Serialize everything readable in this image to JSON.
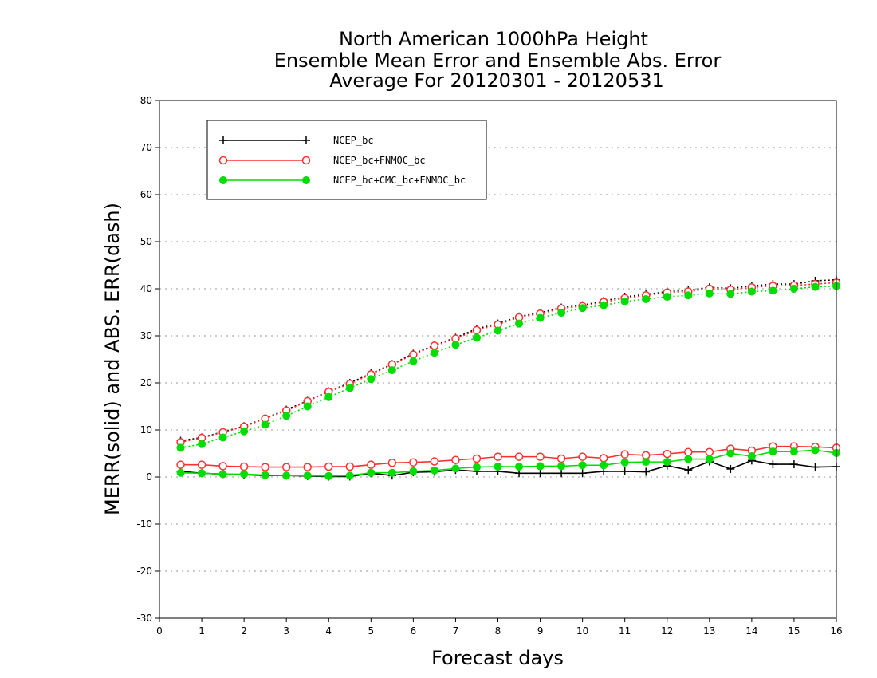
{
  "chart_data": {
    "type": "line",
    "title_lines": [
      "North American 1000hPa Height",
      "Ensemble Mean Error and Ensemble Abs. Error",
      "Average For 20120301 - 20120531"
    ],
    "xlabel": "Forecast days",
    "ylabel": "MERR(solid) and ABS. ERR(dash)",
    "xlim": [
      0,
      16
    ],
    "ylim": [
      -30,
      80
    ],
    "xticks": [
      0,
      1,
      2,
      3,
      4,
      5,
      6,
      7,
      8,
      9,
      10,
      11,
      12,
      13,
      14,
      15,
      16
    ],
    "yticks": [
      -30,
      -20,
      -10,
      0,
      10,
      20,
      30,
      40,
      50,
      60,
      70,
      80
    ],
    "grid": "horizontal dotted",
    "legend_position": "top-left",
    "x": [
      0.5,
      1,
      1.5,
      2,
      2.5,
      3,
      3.5,
      4,
      4.5,
      5,
      5.5,
      6,
      6.5,
      7,
      7.5,
      8,
      8.5,
      9,
      9.5,
      10,
      10.5,
      11,
      11.5,
      12,
      12.5,
      13,
      13.5,
      14,
      14.5,
      15,
      15.5,
      16
    ],
    "series": [
      {
        "name": "NCEP_bc",
        "color": "#000000",
        "marker": "plus",
        "merr": [
          1.2,
          0.8,
          0.6,
          0.5,
          0.3,
          0.3,
          0.2,
          0.1,
          0.1,
          0.8,
          0.3,
          1.0,
          1.1,
          1.5,
          1.2,
          1.2,
          0.8,
          0.8,
          0.8,
          0.8,
          1.2,
          1.2,
          1.1,
          2.4,
          1.5,
          3.3,
          1.7,
          3.5,
          2.7,
          2.7,
          2.1,
          2.2
        ],
        "abs_err": [
          7.7,
          8.4,
          9.6,
          10.8,
          12.5,
          14.3,
          16.2,
          18.2,
          20.0,
          22.0,
          24.0,
          26.2,
          28.0,
          29.6,
          31.5,
          32.6,
          34.1,
          34.9,
          36.0,
          36.5,
          37.4,
          38.3,
          38.8,
          39.4,
          39.7,
          40.3,
          40.1,
          40.6,
          41.0,
          41.0,
          41.7,
          41.9
        ]
      },
      {
        "name": "NCEP_bc+FNMOC_bc",
        "color": "#ff3030",
        "marker": "open-circle",
        "merr": [
          2.6,
          2.6,
          2.3,
          2.2,
          2.1,
          2.1,
          2.1,
          2.2,
          2.2,
          2.6,
          3.0,
          3.1,
          3.3,
          3.6,
          3.9,
          4.3,
          4.3,
          4.3,
          3.9,
          4.3,
          4.0,
          4.8,
          4.6,
          4.9,
          5.3,
          5.3,
          6.0,
          5.6,
          6.5,
          6.5,
          6.4,
          6.2
        ],
        "abs_err": [
          7.4,
          8.3,
          9.5,
          10.7,
          12.4,
          14.1,
          16.1,
          18.1,
          19.8,
          21.8,
          23.9,
          26.0,
          27.9,
          29.4,
          31.2,
          32.4,
          33.9,
          34.7,
          35.8,
          36.3,
          37.2,
          38.0,
          38.6,
          39.2,
          39.4,
          40.0,
          39.8,
          40.3,
          40.6,
          40.7,
          41.0,
          41.3
        ]
      },
      {
        "name": "NCEP_bc+CMC_bc+FNMOC_bc",
        "color": "#00dd00",
        "marker": "filled-circle",
        "merr": [
          0.9,
          0.8,
          0.6,
          0.6,
          0.4,
          0.3,
          0.3,
          0.2,
          0.3,
          0.9,
          0.9,
          1.2,
          1.4,
          1.8,
          2.1,
          2.2,
          2.2,
          2.3,
          2.3,
          2.5,
          2.5,
          3.1,
          3.2,
          3.2,
          3.8,
          3.8,
          5.0,
          4.4,
          5.4,
          5.4,
          5.7,
          5.1
        ],
        "abs_err": [
          6.2,
          7.0,
          8.4,
          9.7,
          11.1,
          13.0,
          15.0,
          17.0,
          18.9,
          20.8,
          22.7,
          24.6,
          26.4,
          28.1,
          29.6,
          31.1,
          32.6,
          33.8,
          34.9,
          35.9,
          36.5,
          37.3,
          37.8,
          38.3,
          38.6,
          39.0,
          38.9,
          39.4,
          39.6,
          40.0,
          40.4,
          40.6
        ]
      }
    ]
  }
}
